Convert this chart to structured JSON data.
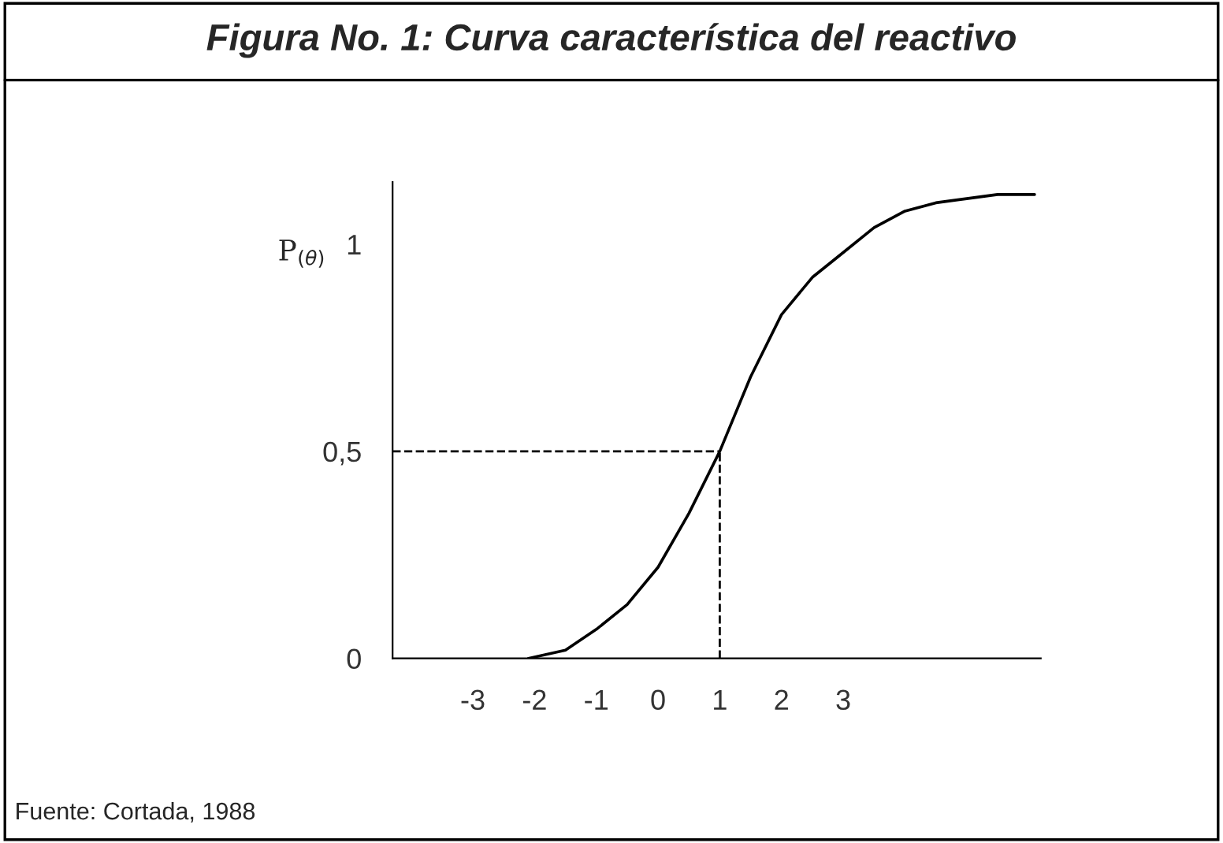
{
  "chart_data": {
    "type": "line",
    "title": "Figura No. 1: Curva característica del reactivo",
    "ylabel": "P$_{(θ)}$",
    "x": [
      -2.1,
      -1.5,
      -1,
      -0.5,
      0,
      0.5,
      1,
      1.5,
      2,
      2.5,
      3,
      3.5,
      4,
      4.5,
      5,
      5.5,
      6.1
    ],
    "series": [
      {
        "color": "#000000",
        "values": [
          0,
          0.02,
          0.07,
          0.13,
          0.22,
          0.35,
          0.5,
          0.68,
          0.83,
          0.92,
          0.98,
          1.04,
          1.08,
          1.1,
          1.11,
          1.12,
          1.12
        ]
      }
    ],
    "xlim": [
      -4.3,
      6.2
    ],
    "ylim": [
      0,
      1.15
    ],
    "xticks": [
      -3,
      -2,
      -1,
      0,
      1,
      2,
      3
    ],
    "yticks": [
      0,
      {
        "value": 0.5,
        "label": "0,5"
      },
      1
    ],
    "ref_lines": [
      {
        "axis": "y",
        "value": 0.5,
        "line_style": "dashed",
        "color": "#000000"
      },
      {
        "axis": "x",
        "value": 1,
        "line_style": "dashed",
        "color": "#000000"
      }
    ],
    "annotations": [
      "Fuente: Cortada, 1988"
    ],
    "grid": false,
    "legend": false,
    "marker": "none",
    "line_style": "solid"
  }
}
